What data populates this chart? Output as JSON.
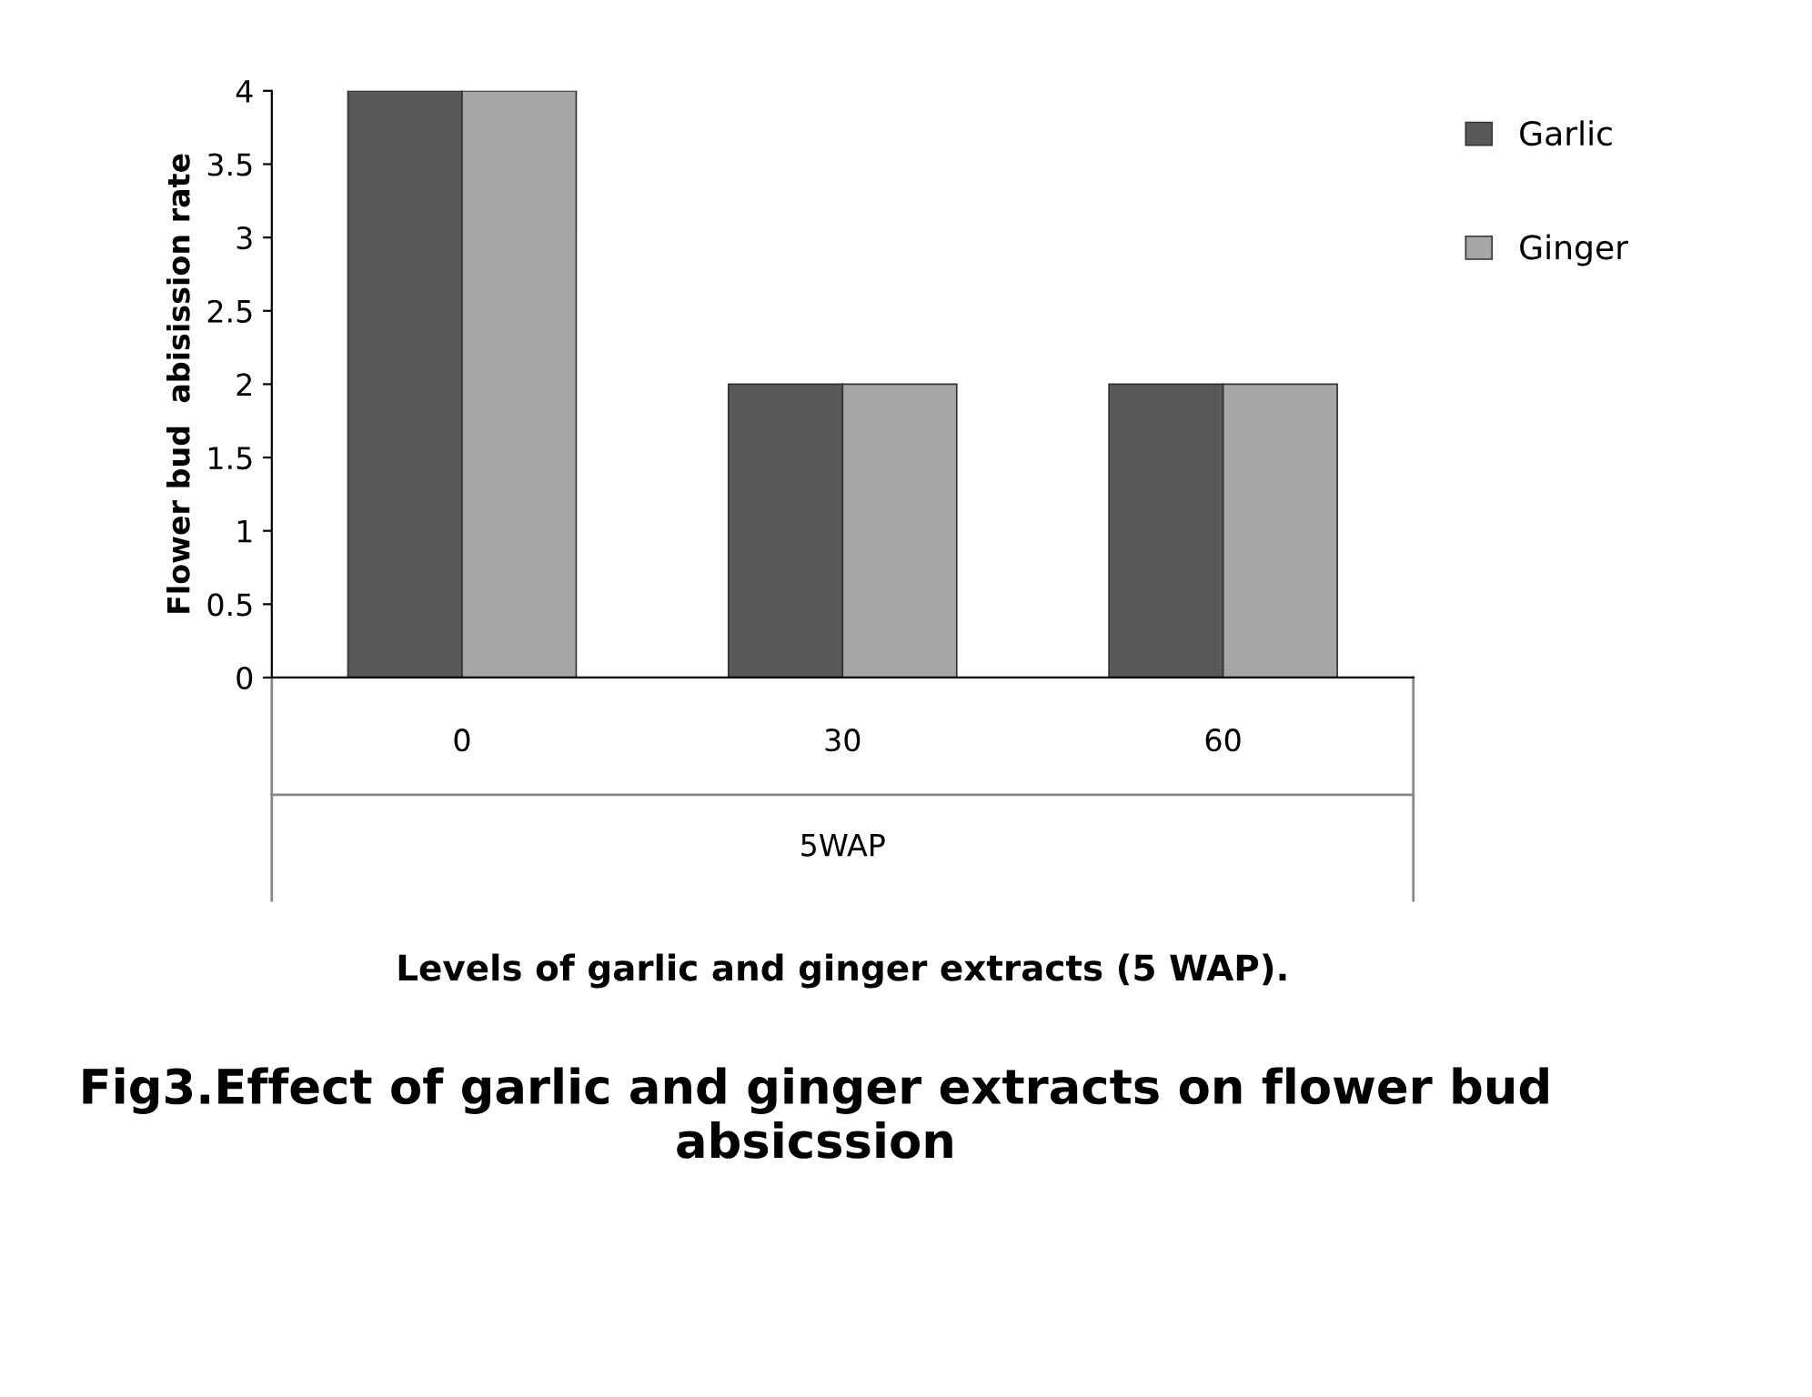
{
  "chart_data": {
    "type": "bar",
    "title": "Fig3.Effect of garlic and ginger extracts on flower bud absicssion",
    "ylabel": "Flower bud  abisission rate",
    "categories": [
      "0",
      "30",
      "60"
    ],
    "series": [
      {
        "name": "Garlic",
        "color": "#595959",
        "values": [
          4.0,
          2.0,
          2.0
        ]
      },
      {
        "name": "Ginger",
        "color": "#a6a6a6",
        "values": [
          4.0,
          2.0,
          2.0
        ]
      }
    ],
    "annotations": [
      "5WAP",
      "Levels of garlic and ginger extracts (5 WAP)."
    ],
    "ylim": [
      0,
      4
    ],
    "yticks": [
      0,
      0.5,
      1,
      1.5,
      2,
      2.5,
      3,
      3.5,
      4
    ],
    "grid": false,
    "legend": "right"
  }
}
